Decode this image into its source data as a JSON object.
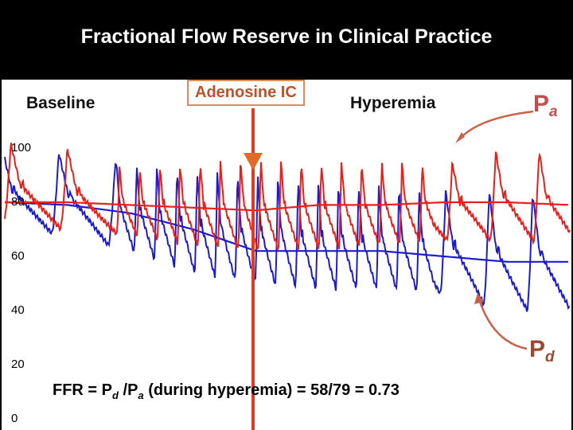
{
  "title": "Fractional Flow Reserve in Clinical Practice",
  "labels": {
    "baseline": "Baseline",
    "adenosine": "Adenosine IC",
    "hyperemia": "Hyperemia",
    "pa_main": "P",
    "pa_sub": "a",
    "pd_main": "P",
    "pd_sub": "d"
  },
  "formula": {
    "ffr_prefix": "FFR = P",
    "pd_sub": "d",
    "slash": " /P",
    "pa_sub": "a",
    "suffix": " (during hyperemia) = 58/79 = 0.73"
  },
  "colors": {
    "pa_trace": "#e8201c",
    "pd_trace": "#1c1ccc",
    "arrow": "#c8604a",
    "marker": "#e03a24"
  },
  "chart_data": {
    "type": "line",
    "yticks": [
      100,
      80,
      60,
      40,
      20,
      0
    ],
    "ylim": [
      0,
      100
    ],
    "series": [
      {
        "name": "Pa",
        "mean": [
          80,
          80,
          79,
          78,
          77,
          79,
          79,
          80,
          80,
          79
        ],
        "systolic": [
          102,
          100,
          92,
          95,
          96,
          95,
          95,
          94,
          100,
          98
        ],
        "diastolic": [
          72,
          70,
          68,
          64,
          62,
          63,
          64,
          66,
          66,
          65
        ]
      },
      {
        "name": "Pd",
        "mean": [
          80,
          79,
          76,
          70,
          62,
          62,
          62,
          60,
          58,
          58
        ],
        "systolic": [
          100,
          98,
          94,
          92,
          90,
          88,
          86,
          84,
          84,
          82
        ],
        "diastolic": [
          70,
          68,
          62,
          54,
          50,
          48,
          48,
          46,
          40,
          40
        ]
      }
    ],
    "annotations": [
      "FFR = Pd /Pa (during hyperemia) = 58/79 = 0.73"
    ]
  }
}
